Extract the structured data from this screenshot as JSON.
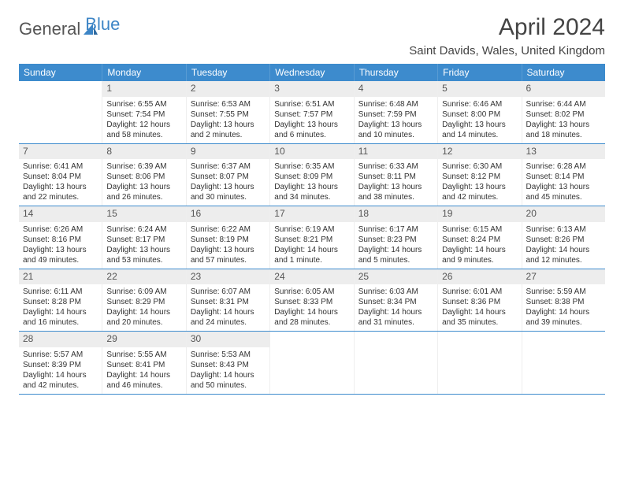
{
  "logo": {
    "general": "General",
    "blue": "Blue"
  },
  "title": "April 2024",
  "location": "Saint Davids, Wales, United Kingdom",
  "colors": {
    "header_bg": "#3d8bcd",
    "header_text": "#ffffff",
    "daynum_bg": "#ededed",
    "border": "#3d8bcd",
    "text": "#333333",
    "logo_blue": "#3d85c6"
  },
  "weekdays": [
    "Sunday",
    "Monday",
    "Tuesday",
    "Wednesday",
    "Thursday",
    "Friday",
    "Saturday"
  ],
  "weeks": [
    [
      null,
      {
        "n": "1",
        "sr": "Sunrise: 6:55 AM",
        "ss": "Sunset: 7:54 PM",
        "dl": "Daylight: 12 hours and 58 minutes."
      },
      {
        "n": "2",
        "sr": "Sunrise: 6:53 AM",
        "ss": "Sunset: 7:55 PM",
        "dl": "Daylight: 13 hours and 2 minutes."
      },
      {
        "n": "3",
        "sr": "Sunrise: 6:51 AM",
        "ss": "Sunset: 7:57 PM",
        "dl": "Daylight: 13 hours and 6 minutes."
      },
      {
        "n": "4",
        "sr": "Sunrise: 6:48 AM",
        "ss": "Sunset: 7:59 PM",
        "dl": "Daylight: 13 hours and 10 minutes."
      },
      {
        "n": "5",
        "sr": "Sunrise: 6:46 AM",
        "ss": "Sunset: 8:00 PM",
        "dl": "Daylight: 13 hours and 14 minutes."
      },
      {
        "n": "6",
        "sr": "Sunrise: 6:44 AM",
        "ss": "Sunset: 8:02 PM",
        "dl": "Daylight: 13 hours and 18 minutes."
      }
    ],
    [
      {
        "n": "7",
        "sr": "Sunrise: 6:41 AM",
        "ss": "Sunset: 8:04 PM",
        "dl": "Daylight: 13 hours and 22 minutes."
      },
      {
        "n": "8",
        "sr": "Sunrise: 6:39 AM",
        "ss": "Sunset: 8:06 PM",
        "dl": "Daylight: 13 hours and 26 minutes."
      },
      {
        "n": "9",
        "sr": "Sunrise: 6:37 AM",
        "ss": "Sunset: 8:07 PM",
        "dl": "Daylight: 13 hours and 30 minutes."
      },
      {
        "n": "10",
        "sr": "Sunrise: 6:35 AM",
        "ss": "Sunset: 8:09 PM",
        "dl": "Daylight: 13 hours and 34 minutes."
      },
      {
        "n": "11",
        "sr": "Sunrise: 6:33 AM",
        "ss": "Sunset: 8:11 PM",
        "dl": "Daylight: 13 hours and 38 minutes."
      },
      {
        "n": "12",
        "sr": "Sunrise: 6:30 AM",
        "ss": "Sunset: 8:12 PM",
        "dl": "Daylight: 13 hours and 42 minutes."
      },
      {
        "n": "13",
        "sr": "Sunrise: 6:28 AM",
        "ss": "Sunset: 8:14 PM",
        "dl": "Daylight: 13 hours and 45 minutes."
      }
    ],
    [
      {
        "n": "14",
        "sr": "Sunrise: 6:26 AM",
        "ss": "Sunset: 8:16 PM",
        "dl": "Daylight: 13 hours and 49 minutes."
      },
      {
        "n": "15",
        "sr": "Sunrise: 6:24 AM",
        "ss": "Sunset: 8:17 PM",
        "dl": "Daylight: 13 hours and 53 minutes."
      },
      {
        "n": "16",
        "sr": "Sunrise: 6:22 AM",
        "ss": "Sunset: 8:19 PM",
        "dl": "Daylight: 13 hours and 57 minutes."
      },
      {
        "n": "17",
        "sr": "Sunrise: 6:19 AM",
        "ss": "Sunset: 8:21 PM",
        "dl": "Daylight: 14 hours and 1 minute."
      },
      {
        "n": "18",
        "sr": "Sunrise: 6:17 AM",
        "ss": "Sunset: 8:23 PM",
        "dl": "Daylight: 14 hours and 5 minutes."
      },
      {
        "n": "19",
        "sr": "Sunrise: 6:15 AM",
        "ss": "Sunset: 8:24 PM",
        "dl": "Daylight: 14 hours and 9 minutes."
      },
      {
        "n": "20",
        "sr": "Sunrise: 6:13 AM",
        "ss": "Sunset: 8:26 PM",
        "dl": "Daylight: 14 hours and 12 minutes."
      }
    ],
    [
      {
        "n": "21",
        "sr": "Sunrise: 6:11 AM",
        "ss": "Sunset: 8:28 PM",
        "dl": "Daylight: 14 hours and 16 minutes."
      },
      {
        "n": "22",
        "sr": "Sunrise: 6:09 AM",
        "ss": "Sunset: 8:29 PM",
        "dl": "Daylight: 14 hours and 20 minutes."
      },
      {
        "n": "23",
        "sr": "Sunrise: 6:07 AM",
        "ss": "Sunset: 8:31 PM",
        "dl": "Daylight: 14 hours and 24 minutes."
      },
      {
        "n": "24",
        "sr": "Sunrise: 6:05 AM",
        "ss": "Sunset: 8:33 PM",
        "dl": "Daylight: 14 hours and 28 minutes."
      },
      {
        "n": "25",
        "sr": "Sunrise: 6:03 AM",
        "ss": "Sunset: 8:34 PM",
        "dl": "Daylight: 14 hours and 31 minutes."
      },
      {
        "n": "26",
        "sr": "Sunrise: 6:01 AM",
        "ss": "Sunset: 8:36 PM",
        "dl": "Daylight: 14 hours and 35 minutes."
      },
      {
        "n": "27",
        "sr": "Sunrise: 5:59 AM",
        "ss": "Sunset: 8:38 PM",
        "dl": "Daylight: 14 hours and 39 minutes."
      }
    ],
    [
      {
        "n": "28",
        "sr": "Sunrise: 5:57 AM",
        "ss": "Sunset: 8:39 PM",
        "dl": "Daylight: 14 hours and 42 minutes."
      },
      {
        "n": "29",
        "sr": "Sunrise: 5:55 AM",
        "ss": "Sunset: 8:41 PM",
        "dl": "Daylight: 14 hours and 46 minutes."
      },
      {
        "n": "30",
        "sr": "Sunrise: 5:53 AM",
        "ss": "Sunset: 8:43 PM",
        "dl": "Daylight: 14 hours and 50 minutes."
      },
      null,
      null,
      null,
      null
    ]
  ]
}
